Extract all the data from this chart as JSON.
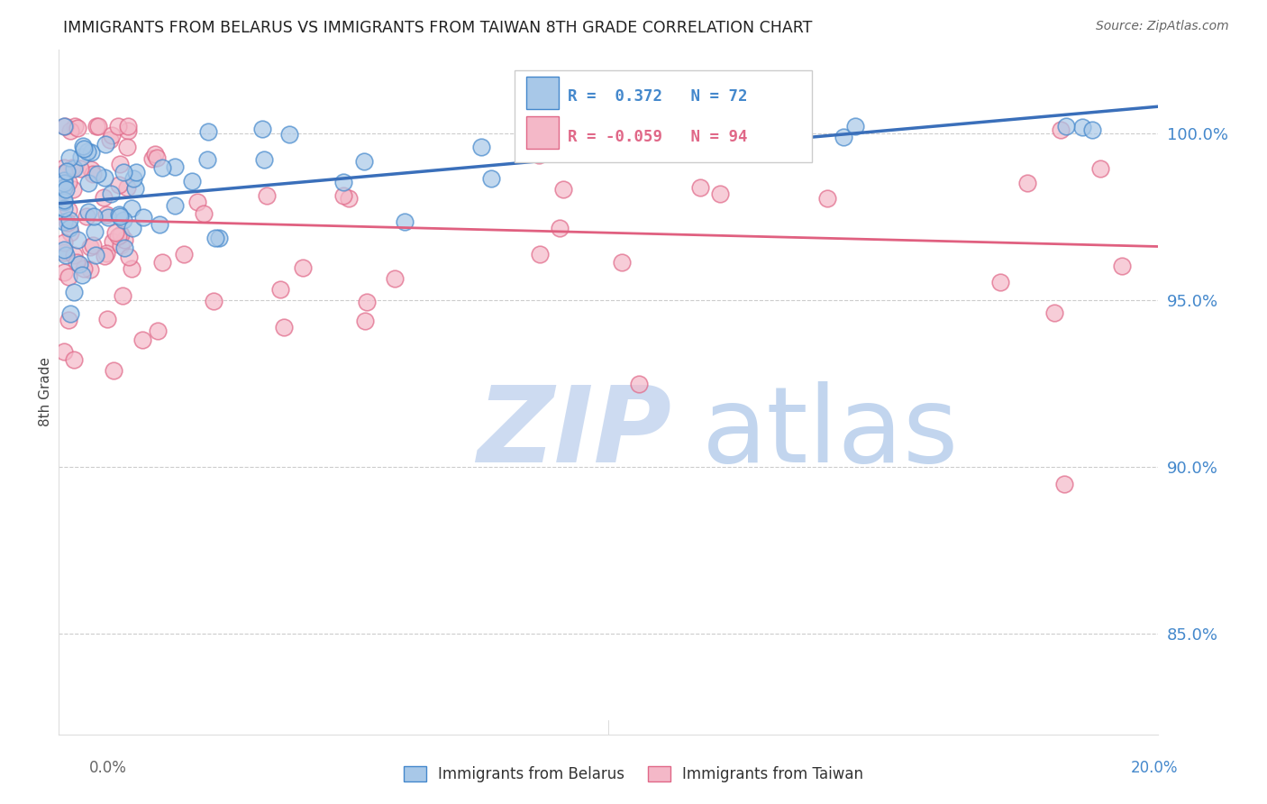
{
  "title": "IMMIGRANTS FROM BELARUS VS IMMIGRANTS FROM TAIWAN 8TH GRADE CORRELATION CHART",
  "source": "Source: ZipAtlas.com",
  "ylabel": "8th Grade",
  "ylabel_right_labels": [
    "100.0%",
    "95.0%",
    "90.0%",
    "85.0%"
  ],
  "ylabel_right_values": [
    1.0,
    0.95,
    0.9,
    0.85
  ],
  "xmin": 0.0,
  "xmax": 0.2,
  "ymin": 0.82,
  "ymax": 1.025,
  "legend_R_belarus": "0.372",
  "legend_N_belarus": "72",
  "legend_R_taiwan": "-0.059",
  "legend_N_taiwan": "94",
  "color_belarus_fill": "#a8c8e8",
  "color_belarus_edge": "#4488cc",
  "color_taiwan_fill": "#f4b8c8",
  "color_taiwan_edge": "#e06888",
  "color_line_belarus": "#3a6fba",
  "color_line_taiwan": "#e06080",
  "color_title": "#222222",
  "color_right_axis": "#4488cc",
  "color_grid": "#cccccc",
  "watermark_zip_color": "#c8d8f0",
  "watermark_atlas_color": "#a8c4e8"
}
